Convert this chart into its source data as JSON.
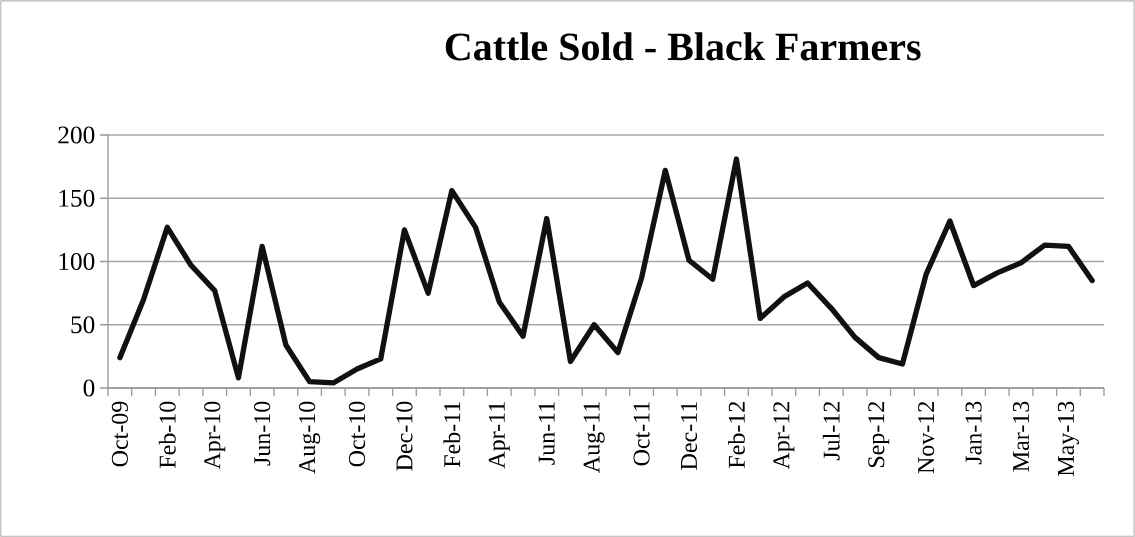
{
  "chart_data": {
    "type": "line",
    "title": "Cattle Sold - Black Farmers",
    "categories": [
      "Oct-09",
      null,
      "Feb-10",
      null,
      "Apr-10",
      null,
      "Jun-10",
      null,
      "Aug-10",
      null,
      "Oct-10",
      null,
      "Dec-10",
      null,
      "Feb-11",
      null,
      "Apr-11",
      null,
      "Jun-11",
      null,
      "Aug-11",
      null,
      "Oct-11",
      null,
      "Dec-11",
      null,
      "Feb-12",
      null,
      "Apr-12",
      null,
      "Jul-12",
      null,
      "Sep-12",
      null,
      "Nov-12",
      null,
      "Jan-13",
      null,
      "Mar-13",
      null,
      "May-13",
      null
    ],
    "series": [
      {
        "color": "#111111",
        "values": [
          24,
          70,
          127,
          97,
          77,
          8,
          112,
          34,
          5,
          4,
          15,
          23,
          125,
          75,
          156,
          127,
          68,
          41,
          134,
          21,
          50,
          28,
          87,
          172,
          101,
          86,
          181,
          55,
          72,
          83,
          63,
          40,
          24,
          19,
          90,
          132,
          81,
          91,
          99,
          113,
          112,
          85
        ]
      }
    ],
    "ylim": [
      0,
      200
    ],
    "yticks": [
      0,
      50,
      100,
      150,
      200
    ],
    "grid": "y",
    "marker": "none",
    "line_style": "solid"
  }
}
